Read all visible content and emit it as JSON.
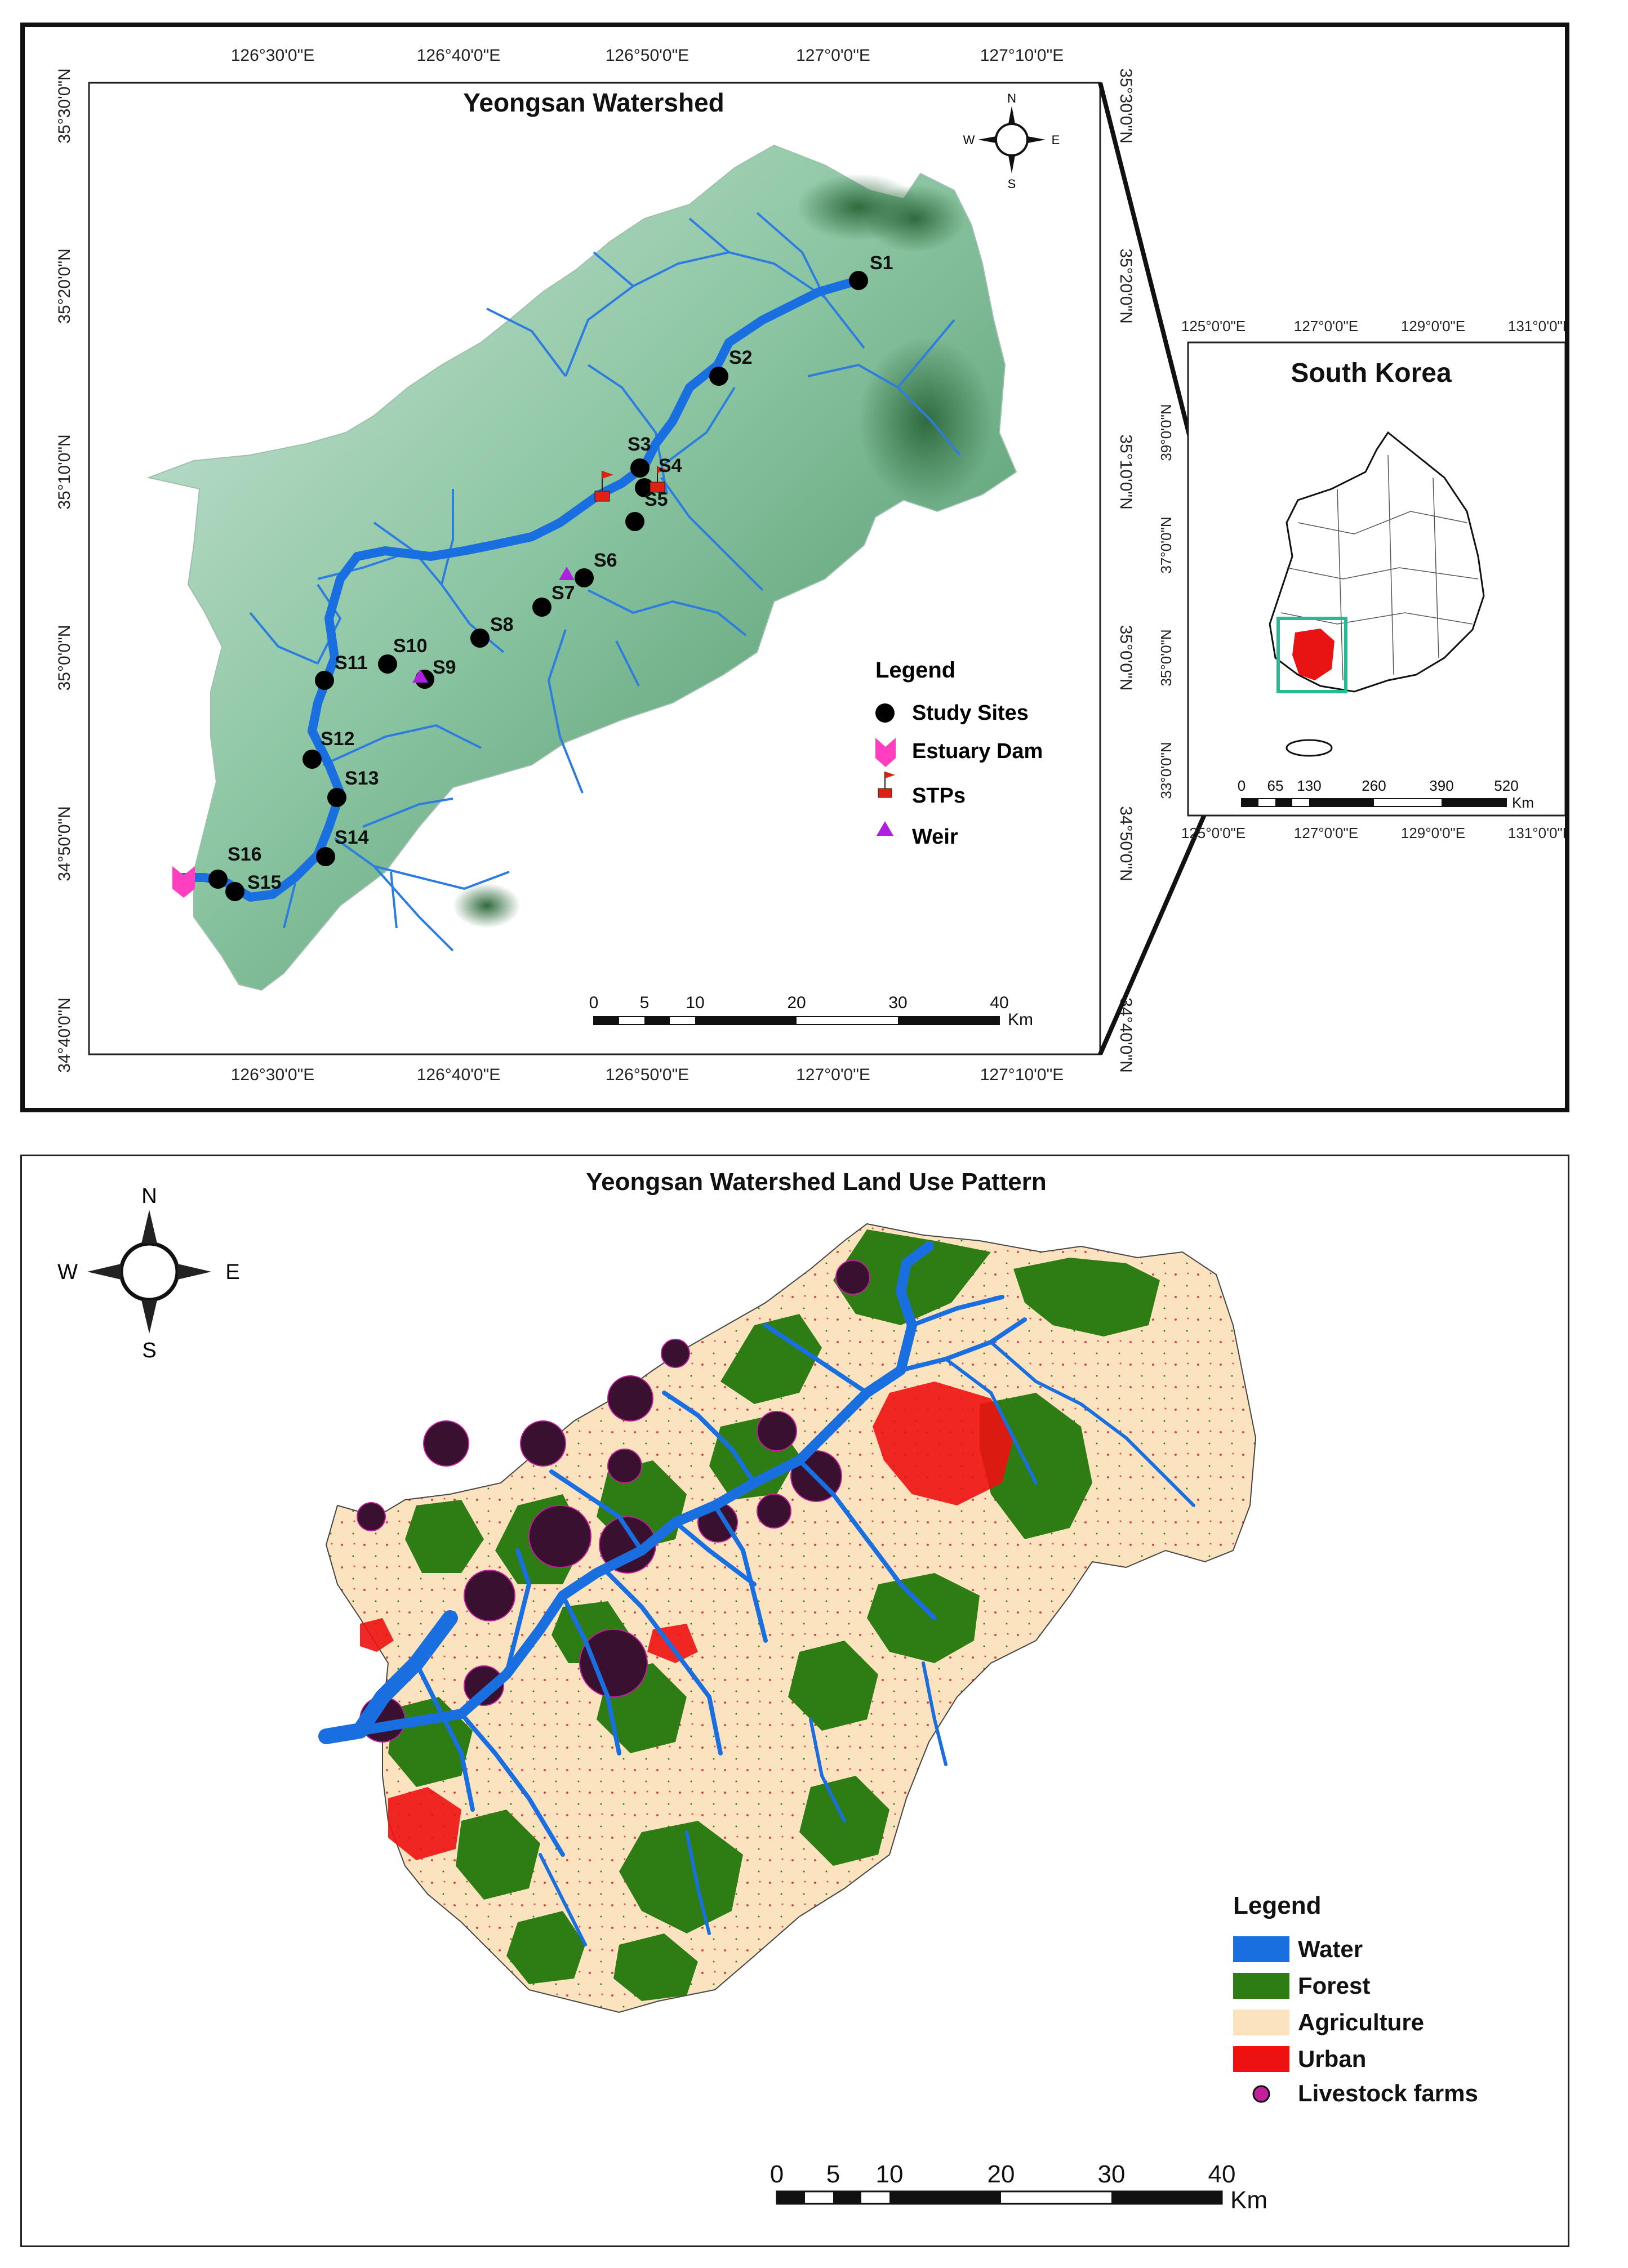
{
  "top_map": {
    "title": "Yeongsan Watershed",
    "lon_ticks": [
      "126°30'0\"E",
      "126°40'0\"E",
      "126°50'0\"E",
      "127°0'0\"E",
      "127°10'0\"E"
    ],
    "lat_ticks": [
      "35°30'0\"N",
      "35°20'0\"N",
      "35°10'0\"N",
      "35°0'0\"N",
      "34°50'0\"N",
      "34°40'0\"N"
    ],
    "compass": {
      "n": "N",
      "s": "S",
      "e": "E",
      "w": "W"
    },
    "sites": [
      "S1",
      "S2",
      "S3",
      "S4",
      "S5",
      "S6",
      "S7",
      "S8",
      "S9",
      "S10",
      "S11",
      "S12",
      "S13",
      "S14",
      "S15",
      "S16"
    ],
    "legend": {
      "title": "Legend",
      "items": [
        {
          "label": "Study Sites",
          "color": "#000000"
        },
        {
          "label": "Estuary Dam",
          "color": "#ff3fbf"
        },
        {
          "label": "STPs",
          "color": "#e02010"
        },
        {
          "label": "Weir",
          "color": "#b020e0"
        }
      ]
    },
    "scale": {
      "ticks": [
        "0",
        "5",
        "10",
        "20",
        "30",
        "40"
      ],
      "unit": "Km"
    }
  },
  "inset": {
    "title": "South Korea",
    "lon_ticks": [
      "125°0'0\"E",
      "127°0'0\"E",
      "129°0'0\"E",
      "131°0'0\"E"
    ],
    "lat_ticks": [
      "39°0'0\"N",
      "37°0'0\"N",
      "35°0'0\"N",
      "33°0'0\"N"
    ],
    "scale": {
      "ticks": [
        "0",
        "65",
        "130",
        "260",
        "390",
        "520"
      ],
      "unit": "Km"
    }
  },
  "bottom_map": {
    "title": "Yeongsan Watershed Land Use Pattern",
    "compass": {
      "n": "N",
      "s": "S",
      "e": "E",
      "w": "W"
    },
    "legend": {
      "title": "Legend",
      "items": [
        {
          "label": "Water",
          "color": "#1a6fe0"
        },
        {
          "label": "Forest",
          "color": "#2e7d14"
        },
        {
          "label": "Agriculture",
          "color": "#fbe3c0"
        },
        {
          "label": "Urban",
          "color": "#ee1111"
        },
        {
          "label": "Livestock farms",
          "color": "#c0209a"
        }
      ]
    },
    "scale": {
      "ticks": [
        "0",
        "5",
        "10",
        "20",
        "30",
        "40"
      ],
      "unit": "Km"
    }
  }
}
